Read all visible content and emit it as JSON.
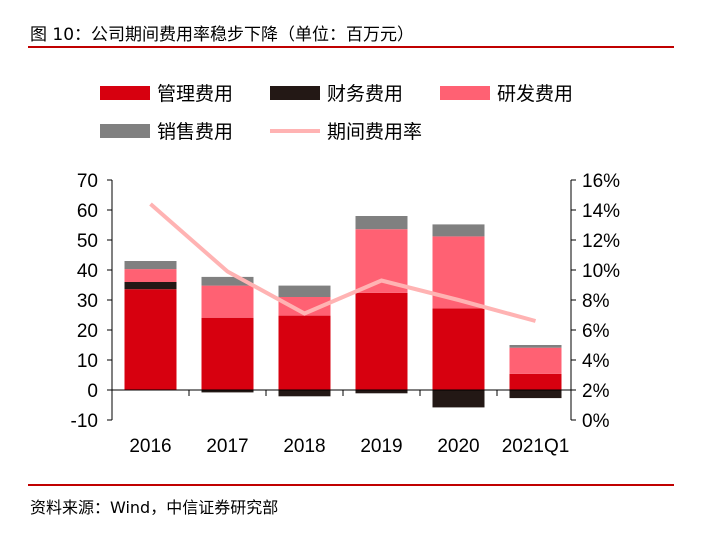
{
  "title": "图 10：公司期间费用率稳步下降（单位：百万元）",
  "source": "资料来源：Wind，中信证券研究部",
  "chart_data": {
    "type": "bar",
    "stacked": true,
    "categories": [
      "2016",
      "2017",
      "2018",
      "2019",
      "2020",
      "2021Q1"
    ],
    "series": [
      {
        "name": "管理费用",
        "color": "#d7000f",
        "values": [
          33.6,
          24.1,
          24.8,
          32.4,
          27.2,
          5.4
        ]
      },
      {
        "name": "财务费用",
        "color": "#231815",
        "values": [
          2.4,
          -0.8,
          -2.1,
          -1.1,
          -5.8,
          -2.7
        ]
      },
      {
        "name": "研发费用",
        "color": "#ff6173",
        "values": [
          4.3,
          10.7,
          6.2,
          21.2,
          24.0,
          8.7
        ]
      },
      {
        "name": "销售费用",
        "color": "#808080",
        "values": [
          2.7,
          2.9,
          3.8,
          4.4,
          4.0,
          0.9
        ]
      }
    ],
    "line_series": {
      "name": "期间费用率",
      "color": "#ffb3b3",
      "axis": "right",
      "values": [
        14.4,
        9.9,
        7.1,
        9.3,
        8.0,
        6.6
      ]
    },
    "ylim": [
      -10,
      70
    ],
    "yticks": [
      "-10",
      "0",
      "10",
      "20",
      "30",
      "40",
      "50",
      "60",
      "70"
    ],
    "y2lim": [
      0,
      16
    ],
    "y2ticks": [
      "0%",
      "2%",
      "4%",
      "6%",
      "8%",
      "10%",
      "12%",
      "14%",
      "16%"
    ],
    "grid": false,
    "legend": "top"
  }
}
